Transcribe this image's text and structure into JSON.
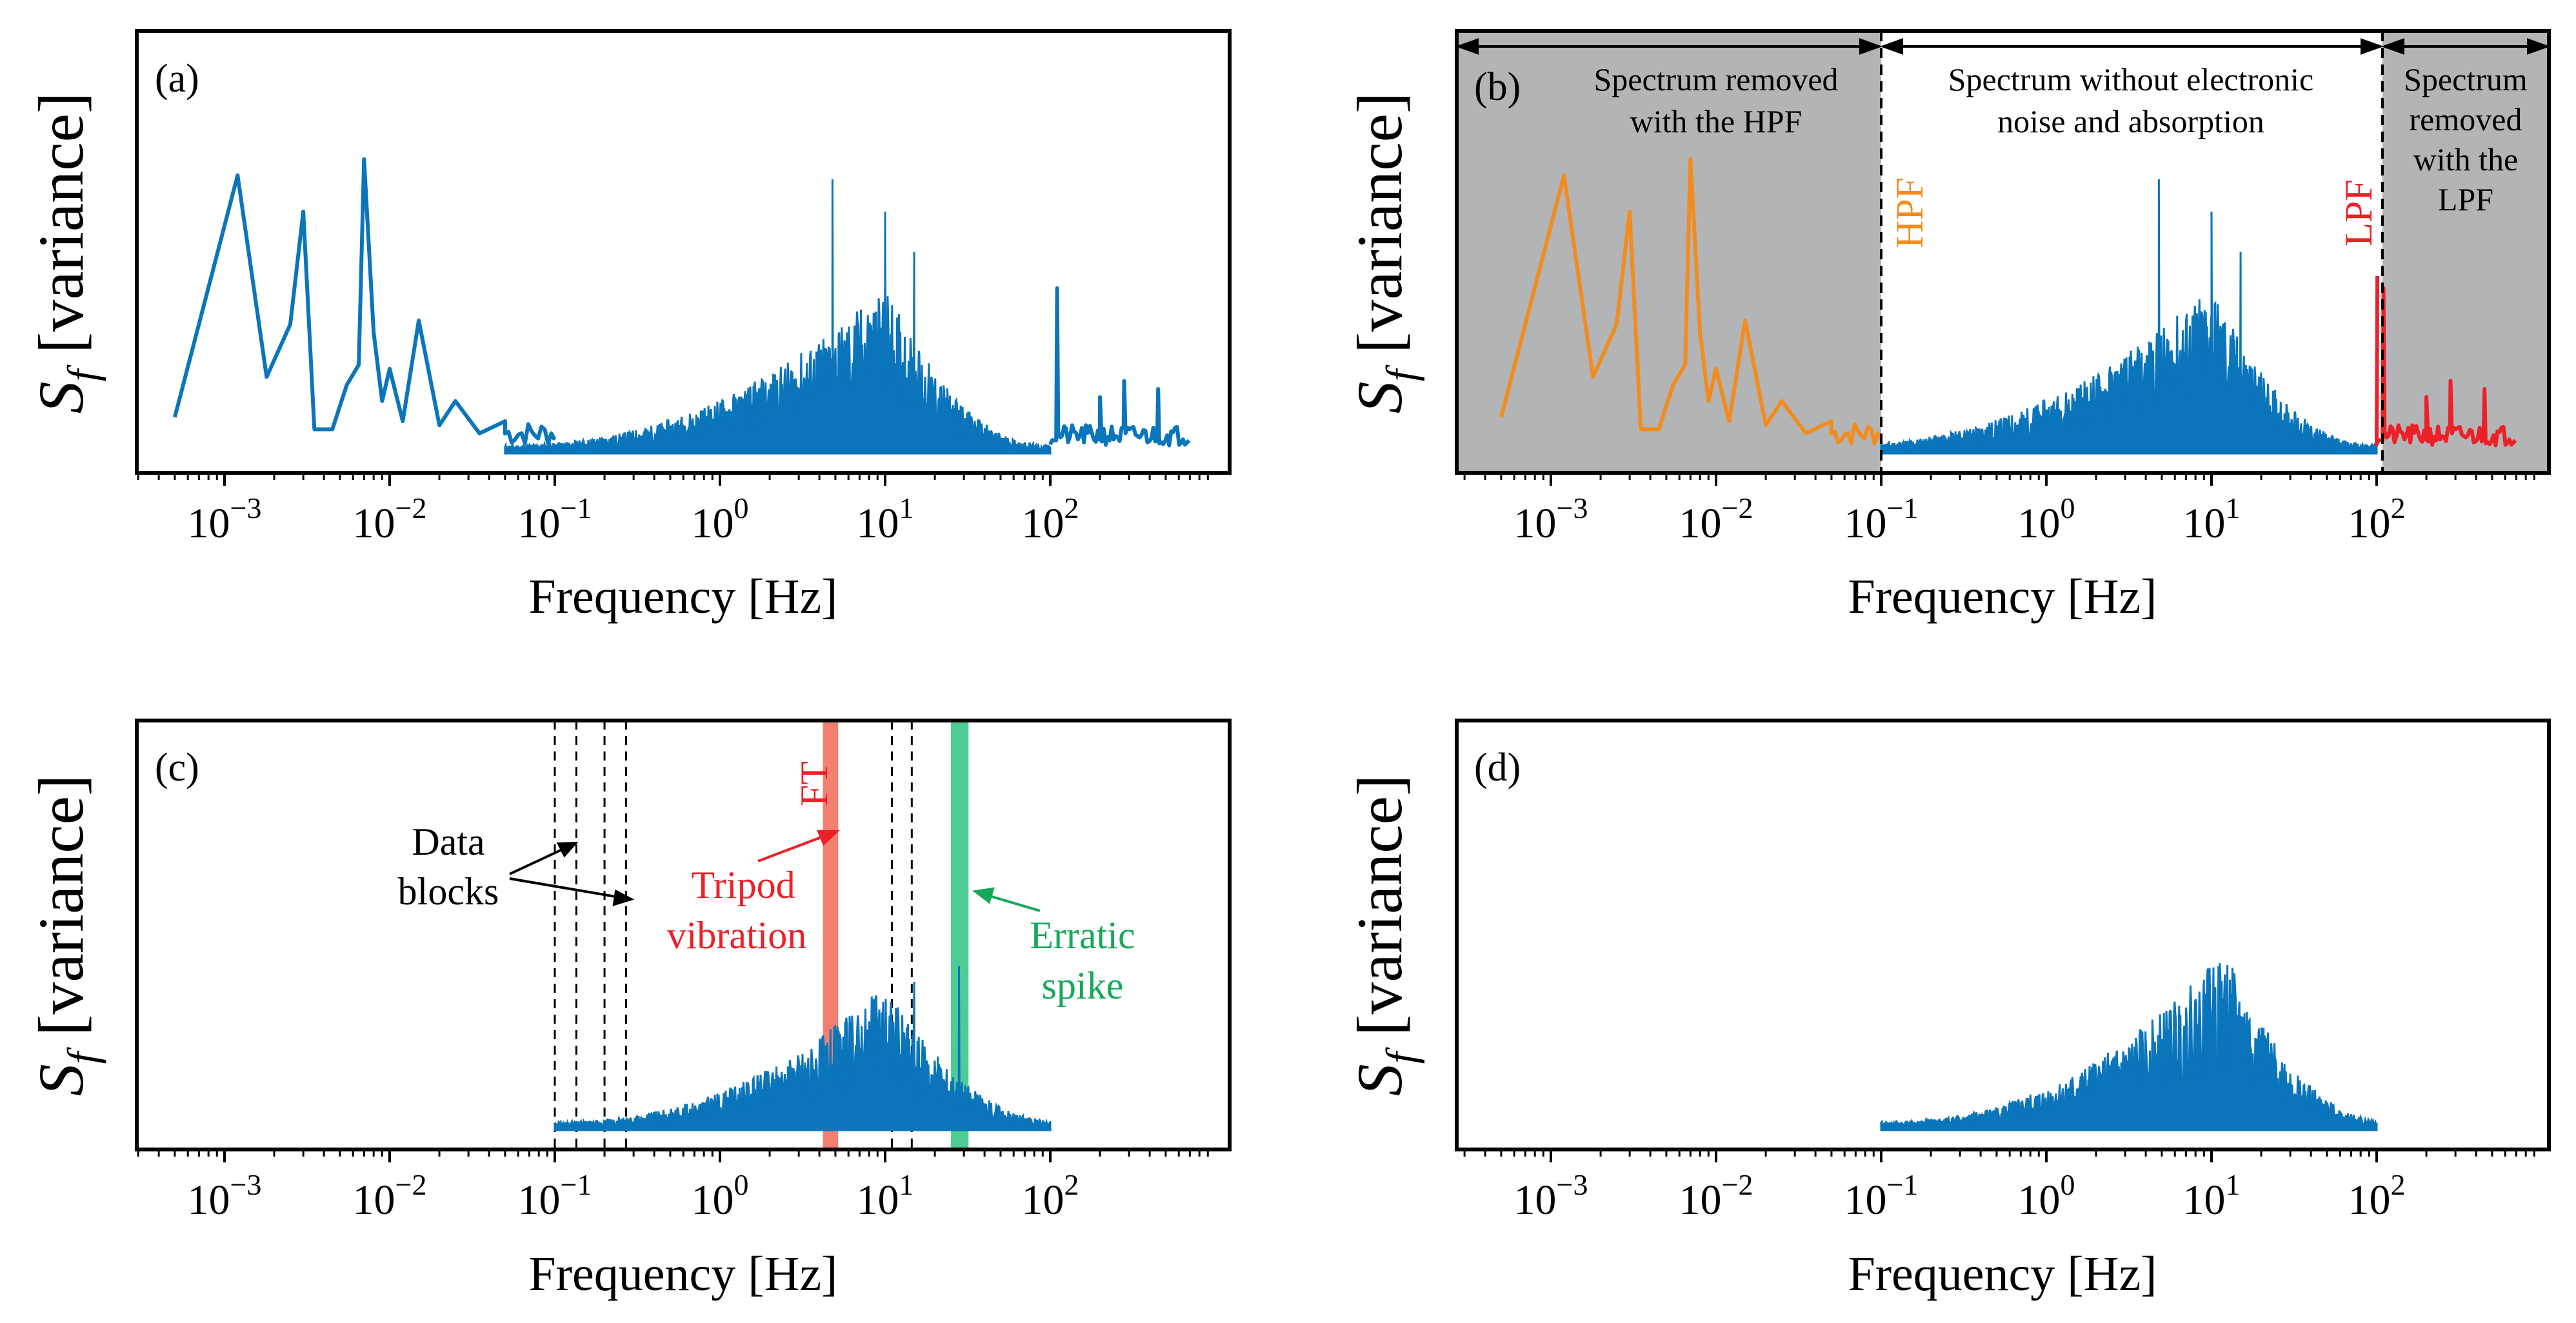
{
  "figure": {
    "xlabel": "Frequency [Hz]",
    "ylabel_symbol": "S",
    "ylabel_sub": "f",
    "ylabel_rest": " [variance]",
    "x_tick_labels": [
      {
        "base": "10",
        "exp": "−3"
      },
      {
        "base": "10",
        "exp": "−2"
      },
      {
        "base": "10",
        "exp": "−1"
      },
      {
        "base": "10",
        "exp": "0"
      },
      {
        "base": "10",
        "exp": "1"
      },
      {
        "base": "10",
        "exp": "2"
      }
    ]
  },
  "colors": {
    "series_blue": "#0b75bb",
    "hpf_orange": "#f28c1f",
    "lpf_red": "#ee2027",
    "removed_gray": "#b3b4b6",
    "tripod_band": "#ef6a5a",
    "spike_band": "#3cc68a",
    "tripod_text": "#ee2027",
    "spike_text": "#16a85a",
    "hpf_text": "#f28c1f",
    "lpf_text": "#ee2027"
  },
  "panels": {
    "a": {
      "label": "(a)"
    },
    "b": {
      "label": "(b)",
      "region_left_line1": "Spectrum removed",
      "region_left_line2": "with the HPF",
      "region_mid_line1": "Spectrum without electronic",
      "region_mid_line2": "noise and absorption",
      "region_right_line1": "Spectrum",
      "region_right_line2": "removed",
      "region_right_line3": "with the",
      "region_right_line4": "LPF",
      "hpf_label": "HPF",
      "lpf_label": "LPF"
    },
    "c": {
      "label": "(c)",
      "ft_label": "FT",
      "data_blocks_line1": "Data",
      "data_blocks_line2": "blocks",
      "tripod_line1": "Tripod",
      "tripod_line2": "vibration",
      "spike_line1": "Erratic",
      "spike_line2": "spike"
    },
    "d": {
      "label": "(d)"
    }
  },
  "chart_data": [
    {
      "panel": "a",
      "type": "line",
      "x_scale": "log",
      "xlim": [
        0.0003,
        900
      ],
      "ylim": [
        0,
        1
      ],
      "xlabel": "Frequency [Hz]",
      "ylabel": "S_f [variance]",
      "series": [
        {
          "name": "spectrum",
          "color": "#0b75bb",
          "peaks": [
            {
              "f": 0.0005,
              "v": 0.09
            },
            {
              "f": 0.0012,
              "v": 0.69
            },
            {
              "f": 0.0018,
              "v": 0.19
            },
            {
              "f": 0.0025,
              "v": 0.32
            },
            {
              "f": 0.003,
              "v": 0.6
            },
            {
              "f": 0.0035,
              "v": 0.06
            },
            {
              "f": 0.0045,
              "v": 0.06
            },
            {
              "f": 0.0055,
              "v": 0.17
            },
            {
              "f": 0.0065,
              "v": 0.22
            },
            {
              "f": 0.007,
              "v": 0.73
            },
            {
              "f": 0.008,
              "v": 0.3
            },
            {
              "f": 0.009,
              "v": 0.13
            },
            {
              "f": 0.01,
              "v": 0.21
            },
            {
              "f": 0.012,
              "v": 0.08
            },
            {
              "f": 0.015,
              "v": 0.33
            },
            {
              "f": 0.02,
              "v": 0.07
            },
            {
              "f": 0.025,
              "v": 0.13
            },
            {
              "f": 0.035,
              "v": 0.05
            },
            {
              "f": 0.05,
              "v": 0.08
            }
          ],
          "broadband": {
            "f_start": 0.05,
            "f_peak": 10,
            "f_end": 80,
            "v_base": 0.02,
            "v_peak": 0.38
          },
          "spikes": [
            {
              "f": 4.8,
              "v": 0.68
            },
            {
              "f": 10,
              "v": 0.6
            },
            {
              "f": 15,
              "v": 0.5
            },
            {
              "f": 110,
              "v": 0.41
            },
            {
              "f": 200,
              "v": 0.14
            },
            {
              "f": 280,
              "v": 0.18
            },
            {
              "f": 450,
              "v": 0.16
            }
          ]
        }
      ]
    },
    {
      "panel": "b",
      "type": "line",
      "x_scale": "log",
      "xlim": [
        0.0003,
        900
      ],
      "ylim": [
        0,
        1
      ],
      "regions": [
        {
          "name": "removed_hpf",
          "x_range": [
            0.0003,
            0.1
          ]
        },
        {
          "name": "retained",
          "x_range": [
            0.1,
            100
          ]
        },
        {
          "name": "removed_lpf",
          "x_range": [
            100,
            900
          ]
        }
      ],
      "cutoffs": {
        "hpf": 0.1,
        "lpf": 100
      },
      "series": [
        {
          "name": "below_hpf",
          "color": "#f28c1f",
          "x_range": [
            0.0005,
            0.1
          ]
        },
        {
          "name": "retained",
          "color": "#0b75bb",
          "x_range": [
            0.1,
            100
          ]
        },
        {
          "name": "above_lpf",
          "color": "#ee2027",
          "x_range": [
            100,
            700
          ]
        }
      ]
    },
    {
      "panel": "c",
      "type": "line",
      "x_scale": "log",
      "xlim": [
        0.0003,
        900
      ],
      "ylim": [
        0,
        1
      ],
      "series": [
        {
          "name": "hpf_lpf_filtered",
          "color": "#0b75bb",
          "x_range": [
            0.1,
            100
          ]
        }
      ],
      "data_block_lines": [
        0.1,
        0.135,
        0.2,
        0.27,
        11,
        14.5
      ],
      "bands": [
        {
          "name": "tripod_vibration",
          "x_range": [
            4.2,
            5.2
          ]
        },
        {
          "name": "erratic_spike",
          "x_range": [
            25,
            32
          ]
        }
      ]
    },
    {
      "panel": "d",
      "type": "line",
      "x_scale": "log",
      "xlim": [
        0.0003,
        900
      ],
      "ylim": [
        0,
        1
      ],
      "series": [
        {
          "name": "final_spectrum",
          "color": "#0b75bb",
          "x_range": [
            0.1,
            100
          ],
          "peak_f": 12,
          "peak_v": 0.42
        }
      ]
    }
  ]
}
